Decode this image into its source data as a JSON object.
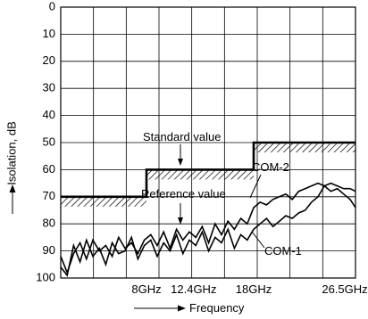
{
  "chart_data": {
    "type": "line",
    "ylabel": "Isolation, dB",
    "xlabel": "Frequency",
    "y_ticks": [
      "0",
      "10",
      "20",
      "30",
      "40",
      "50",
      "60",
      "70",
      "80",
      "90",
      "100"
    ],
    "ylim": [
      0,
      100
    ],
    "y_inverted": true,
    "x_ticks": [
      {
        "label": "8GHz",
        "value": 8
      },
      {
        "label": "12.4GHz",
        "value": 12.4
      },
      {
        "label": "18GHz",
        "value": 18
      },
      {
        "label": "26.5GHz",
        "value": 26.5
      }
    ],
    "xlim": [
      0,
      27.5
    ],
    "grid": true,
    "annotations": {
      "standard": "Standard value",
      "reference": "Reference value",
      "com2": "COM-2",
      "com1": "COM-1"
    },
    "series": [
      {
        "name": "Standard value",
        "style": "step-hatched",
        "x": [
          0,
          8,
          8,
          18,
          18,
          27.5
        ],
        "y": [
          70,
          70,
          60,
          60,
          50,
          50
        ]
      },
      {
        "name": "COM-1",
        "x": [
          0,
          0.6,
          1.2,
          1.8,
          2.4,
          3.0,
          3.6,
          4.2,
          4.8,
          5.4,
          6.0,
          6.6,
          7.2,
          7.8,
          8.4,
          9.0,
          9.6,
          10.2,
          10.8,
          11.4,
          12.0,
          12.6,
          13.2,
          13.8,
          14.4,
          15.0,
          15.6,
          16.2,
          16.8,
          17.4,
          18.0,
          18.6,
          19.2,
          19.8,
          20.4,
          21.0,
          21.6,
          22.2,
          22.8,
          23.4,
          24.0,
          24.6,
          25.2,
          25.8,
          26.4,
          27.0,
          27.5
        ],
        "y": [
          96,
          99,
          88,
          94,
          86,
          92,
          89,
          95,
          87,
          91,
          90,
          85,
          93,
          88,
          86,
          92,
          87,
          90,
          84,
          91,
          86,
          88,
          83,
          90,
          85,
          87,
          82,
          89,
          84,
          86,
          82,
          80,
          78,
          81,
          79,
          77,
          78,
          76,
          75,
          72,
          70,
          66,
          68,
          67,
          69,
          71,
          74
        ]
      },
      {
        "name": "COM-2",
        "x": [
          0,
          0.6,
          1.2,
          1.8,
          2.4,
          3.0,
          3.6,
          4.2,
          4.8,
          5.4,
          6.0,
          6.6,
          7.2,
          7.8,
          8.4,
          9.0,
          9.6,
          10.2,
          10.8,
          11.4,
          12.0,
          12.6,
          13.2,
          13.8,
          14.4,
          15.0,
          15.6,
          16.2,
          16.8,
          17.4,
          18.0,
          18.6,
          19.2,
          19.8,
          20.4,
          21.0,
          21.6,
          22.2,
          22.8,
          23.4,
          24.0,
          24.6,
          25.2,
          25.8,
          26.4,
          27.0,
          27.5
        ],
        "y": [
          92,
          98,
          91,
          87,
          93,
          86,
          90,
          88,
          92,
          85,
          89,
          87,
          91,
          86,
          84,
          88,
          83,
          89,
          82,
          86,
          83,
          85,
          81,
          87,
          80,
          84,
          79,
          82,
          78,
          80,
          74,
          72,
          73,
          71,
          70,
          69,
          71,
          68,
          67,
          66,
          65,
          66,
          65,
          66,
          67,
          67,
          68
        ]
      }
    ]
  }
}
